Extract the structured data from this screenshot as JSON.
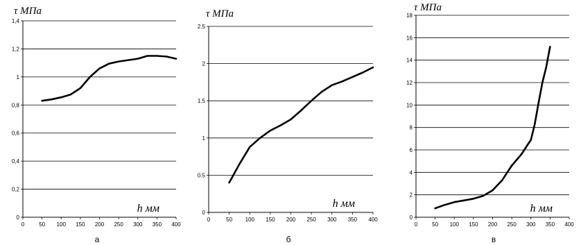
{
  "chart_data": [
    {
      "type": "line",
      "ylabel": "τ МПа",
      "xlabel": "h мм",
      "panel_label": "а",
      "xlim": [
        0,
        400
      ],
      "ylim": [
        0,
        1.4
      ],
      "x_ticks": [
        "0",
        "50",
        "100",
        "150",
        "200",
        "250",
        "300",
        "350",
        "400"
      ],
      "y_ticks": [
        "0",
        "0,2",
        "0,4",
        "0,6",
        "0,8",
        "1",
        "1,2",
        "1,4"
      ],
      "grid": "horizontal",
      "series": [
        {
          "x": [
            50,
            75,
            100,
            125,
            150,
            175,
            200,
            225,
            250,
            275,
            300,
            325,
            350,
            375,
            400
          ],
          "y": [
            0.83,
            0.84,
            0.855,
            0.875,
            0.92,
            1.0,
            1.06,
            1.095,
            1.11,
            1.12,
            1.13,
            1.15,
            1.15,
            1.145,
            1.13
          ]
        }
      ]
    },
    {
      "type": "line",
      "ylabel": "τ МПа",
      "xlabel": "h мм",
      "panel_label": "б",
      "xlim": [
        0,
        400
      ],
      "ylim": [
        0,
        2.5
      ],
      "x_ticks": [
        "0",
        "50",
        "100",
        "150",
        "200",
        "250",
        "300",
        "350",
        "400"
      ],
      "y_ticks": [
        "0",
        "0.5",
        "1",
        "1.5",
        "2",
        "2.5"
      ],
      "grid": "horizontal",
      "series": [
        {
          "x": [
            50,
            75,
            100,
            125,
            150,
            175,
            200,
            225,
            250,
            275,
            300,
            325,
            350,
            375,
            400
          ],
          "y": [
            0.4,
            0.65,
            0.88,
            1.0,
            1.1,
            1.17,
            1.25,
            1.37,
            1.5,
            1.62,
            1.71,
            1.76,
            1.82,
            1.88,
            1.95
          ]
        }
      ]
    },
    {
      "type": "line",
      "ylabel": "τ МПа",
      "xlabel": "h мм",
      "panel_label": "в",
      "xlim": [
        0,
        400
      ],
      "ylim": [
        0,
        18
      ],
      "x_ticks": [
        "0",
        "50",
        "100",
        "150",
        "200",
        "250",
        "300",
        "350",
        "400"
      ],
      "y_ticks": [
        "0",
        "2",
        "4",
        "6",
        "8",
        "10",
        "12",
        "14",
        "16",
        "18"
      ],
      "grid": "horizontal",
      "series": [
        {
          "x": [
            50,
            75,
            100,
            125,
            150,
            175,
            200,
            225,
            250,
            275,
            300,
            310,
            320,
            330,
            340,
            350
          ],
          "y": [
            0.8,
            1.1,
            1.35,
            1.5,
            1.65,
            1.9,
            2.4,
            3.3,
            4.6,
            5.6,
            6.9,
            8.3,
            10.2,
            12.0,
            13.4,
            15.2
          ]
        }
      ]
    }
  ]
}
